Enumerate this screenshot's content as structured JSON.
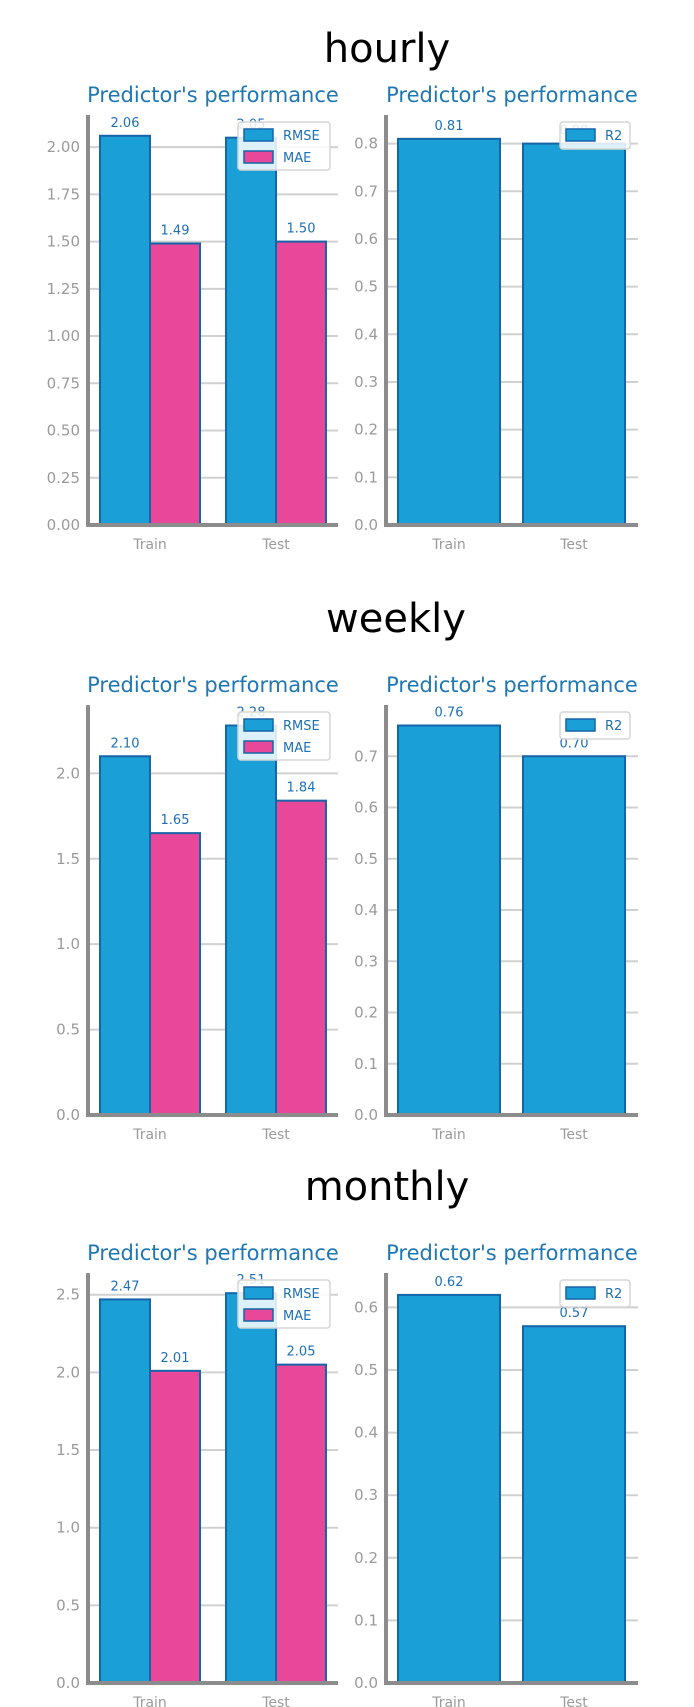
{
  "sections": [
    {
      "title": "hourly"
    },
    {
      "title": "weekly"
    },
    {
      "title": "monthly"
    }
  ],
  "colors": {
    "rmse": "#1a9fd7",
    "mae": "#e8479a",
    "r2": "#1a9fd7",
    "bar_edge": "#1565a8",
    "title": "#1f77b4",
    "grid": "#d0d0d0",
    "axis": "#8c8c8c",
    "tick": "#9a9a9a"
  },
  "chart_data": [
    {
      "type": "bar",
      "section": "hourly",
      "title": "Predictor's performance",
      "categories": [
        "Train",
        "Test"
      ],
      "series": [
        {
          "name": "RMSE",
          "values": [
            2.06,
            2.05
          ],
          "labels": [
            "2.06",
            "2.05"
          ]
        },
        {
          "name": "MAE",
          "values": [
            1.49,
            1.5
          ],
          "labels": [
            "1.49",
            "1.50"
          ]
        }
      ],
      "ylim": [
        0,
        2.17
      ],
      "yticks": [
        0,
        0.25,
        0.5,
        0.75,
        1.0,
        1.25,
        1.5,
        1.75,
        2.0
      ],
      "ytick_labels": [
        "0.00",
        "0.25",
        "0.50",
        "0.75",
        "1.00",
        "1.25",
        "1.50",
        "1.75",
        "2.00"
      ],
      "grid": true,
      "legend": "top-right"
    },
    {
      "type": "bar",
      "section": "hourly",
      "title": "Predictor's performance",
      "categories": [
        "Train",
        "Test"
      ],
      "series": [
        {
          "name": "R2",
          "values": [
            0.81,
            0.8
          ],
          "labels": [
            "0.81",
            "0.80"
          ]
        }
      ],
      "ylim": [
        0,
        0.86
      ],
      "yticks": [
        0,
        0.1,
        0.2,
        0.3,
        0.4,
        0.5,
        0.6,
        0.7,
        0.8
      ],
      "ytick_labels": [
        "0.0",
        "0.1",
        "0.2",
        "0.3",
        "0.4",
        "0.5",
        "0.6",
        "0.7",
        "0.8"
      ],
      "grid": true,
      "legend": "top-right"
    },
    {
      "type": "bar",
      "section": "weekly",
      "title": "Predictor's performance",
      "categories": [
        "Train",
        "Test"
      ],
      "series": [
        {
          "name": "RMSE",
          "values": [
            2.1,
            2.28
          ],
          "labels": [
            "2.10",
            "2.28"
          ]
        },
        {
          "name": "MAE",
          "values": [
            1.65,
            1.84
          ],
          "labels": [
            "1.65",
            "1.84"
          ]
        }
      ],
      "ylim": [
        0,
        2.4
      ],
      "yticks": [
        0,
        0.5,
        1.0,
        1.5,
        2.0
      ],
      "ytick_labels": [
        "0.0",
        "0.5",
        "1.0",
        "1.5",
        "2.0"
      ],
      "grid": true,
      "legend": "top-right"
    },
    {
      "type": "bar",
      "section": "weekly",
      "title": "Predictor's performance",
      "categories": [
        "Train",
        "Test"
      ],
      "series": [
        {
          "name": "R2",
          "values": [
            0.76,
            0.7
          ],
          "labels": [
            "0.76",
            "0.70"
          ]
        }
      ],
      "ylim": [
        0,
        0.8
      ],
      "yticks": [
        0,
        0.1,
        0.2,
        0.3,
        0.4,
        0.5,
        0.6,
        0.7
      ],
      "ytick_labels": [
        "0.0",
        "0.1",
        "0.2",
        "0.3",
        "0.4",
        "0.5",
        "0.6",
        "0.7"
      ],
      "grid": true,
      "legend": "top-right"
    },
    {
      "type": "bar",
      "section": "monthly",
      "title": "Predictor's performance",
      "categories": [
        "Train",
        "Test"
      ],
      "series": [
        {
          "name": "RMSE",
          "values": [
            2.47,
            2.51
          ],
          "labels": [
            "2.47",
            "2.51"
          ]
        },
        {
          "name": "MAE",
          "values": [
            2.01,
            2.05
          ],
          "labels": [
            "2.01",
            "2.05"
          ]
        }
      ],
      "ylim": [
        0,
        2.64
      ],
      "yticks": [
        0,
        0.5,
        1.0,
        1.5,
        2.0,
        2.5
      ],
      "ytick_labels": [
        "0.0",
        "0.5",
        "1.0",
        "1.5",
        "2.0",
        "2.5"
      ],
      "grid": true,
      "legend": "top-right"
    },
    {
      "type": "bar",
      "section": "monthly",
      "title": "Predictor's performance",
      "categories": [
        "Train",
        "Test"
      ],
      "series": [
        {
          "name": "R2",
          "values": [
            0.62,
            0.57
          ],
          "labels": [
            "0.62",
            "0.57"
          ]
        }
      ],
      "ylim": [
        0,
        0.655
      ],
      "yticks": [
        0,
        0.1,
        0.2,
        0.3,
        0.4,
        0.5,
        0.6
      ],
      "ytick_labels": [
        "0.0",
        "0.1",
        "0.2",
        "0.3",
        "0.4",
        "0.5",
        "0.6"
      ],
      "grid": true,
      "legend": "top-right"
    }
  ]
}
